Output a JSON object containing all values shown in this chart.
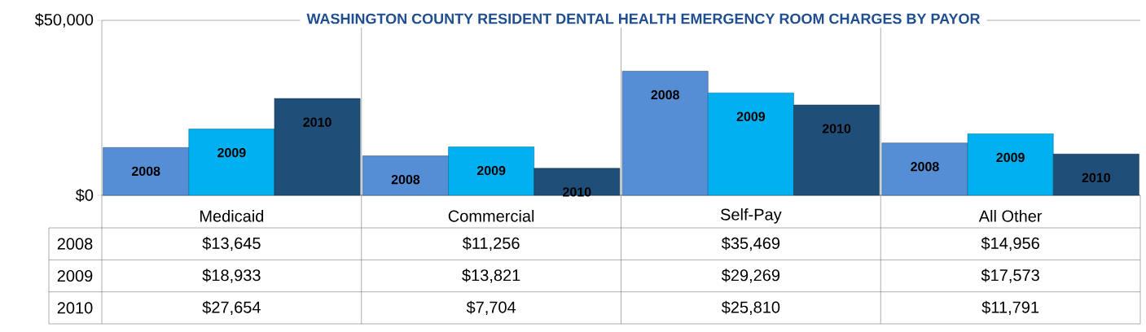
{
  "chart_data": {
    "type": "bar",
    "title": "WASHINGTON COUNTY RESIDENT DENTAL HEALTH EMERGENCY ROOM CHARGES BY PAYOR",
    "categories": [
      "Medicaid",
      "Commercial",
      "Self-Pay",
      "All Other"
    ],
    "series": [
      {
        "name": "2008",
        "color": "#558ed5",
        "values": [
          13645,
          11256,
          35469,
          14956
        ],
        "value_labels": [
          "$13,645",
          "$11,256",
          "$35,469",
          "$14,956"
        ]
      },
      {
        "name": "2009",
        "color": "#00b0f0",
        "values": [
          18933,
          13821,
          29269,
          17573
        ],
        "value_labels": [
          "$18,933",
          "$13,821",
          "$29,269",
          "$17,573"
        ]
      },
      {
        "name": "2010",
        "color": "#1f4e79",
        "values": [
          27654,
          7704,
          25810,
          11791
        ],
        "value_labels": [
          "$27,654",
          "$7,704",
          "$25,810",
          "$11,791"
        ]
      }
    ],
    "ylim": [
      0,
      50000
    ],
    "yticks": [
      {
        "value": 0,
        "label": "$0"
      },
      {
        "value": 50000,
        "label": "$50,000"
      }
    ],
    "grid": true
  }
}
